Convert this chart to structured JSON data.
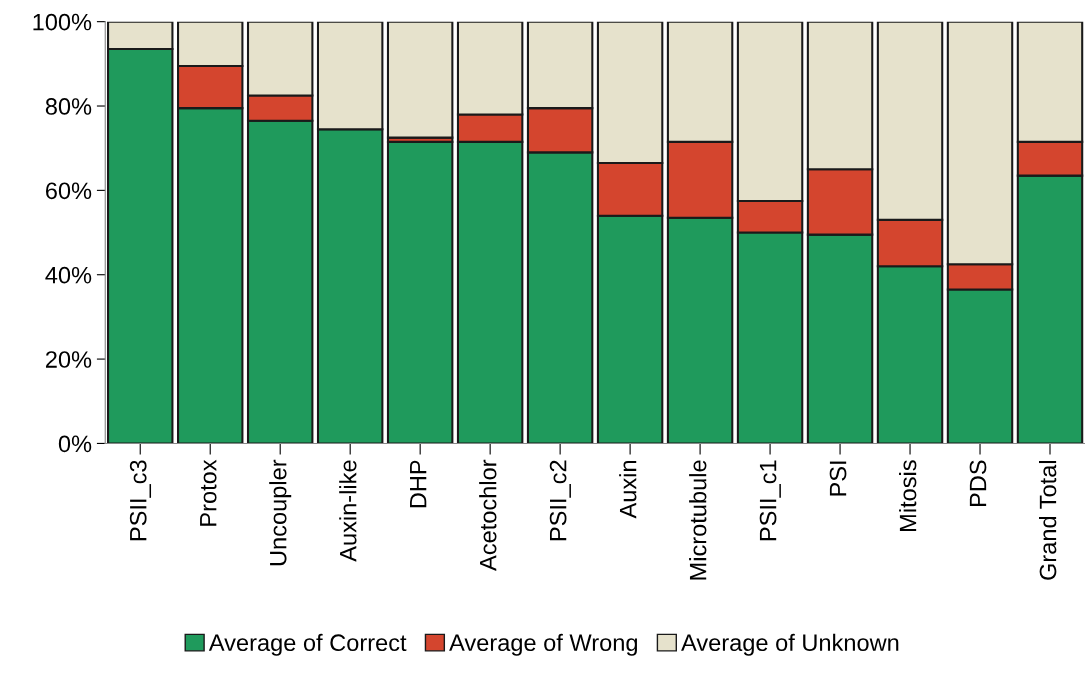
{
  "chart_data": {
    "type": "bar",
    "stacked": true,
    "categories": [
      "PSII_c3",
      "Protox",
      "Uncoupler",
      "Auxin-like",
      "DHP",
      "Acetochlor",
      "PSII_c2",
      "Auxin",
      "Microtubule",
      "PSII_c1",
      "PSI",
      "Mitosis",
      "PDS",
      "Grand Total"
    ],
    "series": [
      {
        "name": "Average of Correct",
        "color": "#1f9a5c",
        "values": [
          93.5,
          79.5,
          76.5,
          74.5,
          71.5,
          71.5,
          69,
          54,
          53.5,
          50,
          49.5,
          42,
          36.5,
          63.5
        ]
      },
      {
        "name": "Average of Wrong",
        "color": "#d4452e",
        "values": [
          0,
          10,
          6,
          0,
          1,
          6.5,
          10.5,
          12.5,
          18,
          7.5,
          15.5,
          11,
          6,
          8
        ]
      },
      {
        "name": "Average of Unknown",
        "color": "#e6e2cc",
        "values": [
          6.5,
          10.5,
          17.5,
          25.5,
          27.5,
          22,
          20.5,
          33.5,
          28.5,
          42.5,
          35,
          47,
          57.5,
          28.5
        ]
      }
    ],
    "ylim": [
      0,
      100
    ],
    "yticks": [
      {
        "value": 0,
        "label": "0%"
      },
      {
        "value": 20,
        "label": "20%"
      },
      {
        "value": 40,
        "label": "40%"
      },
      {
        "value": 60,
        "label": "60%"
      },
      {
        "value": 80,
        "label": "80%"
      },
      {
        "value": 100,
        "label": "100%"
      }
    ],
    "grid": false,
    "legend": "bottom"
  }
}
